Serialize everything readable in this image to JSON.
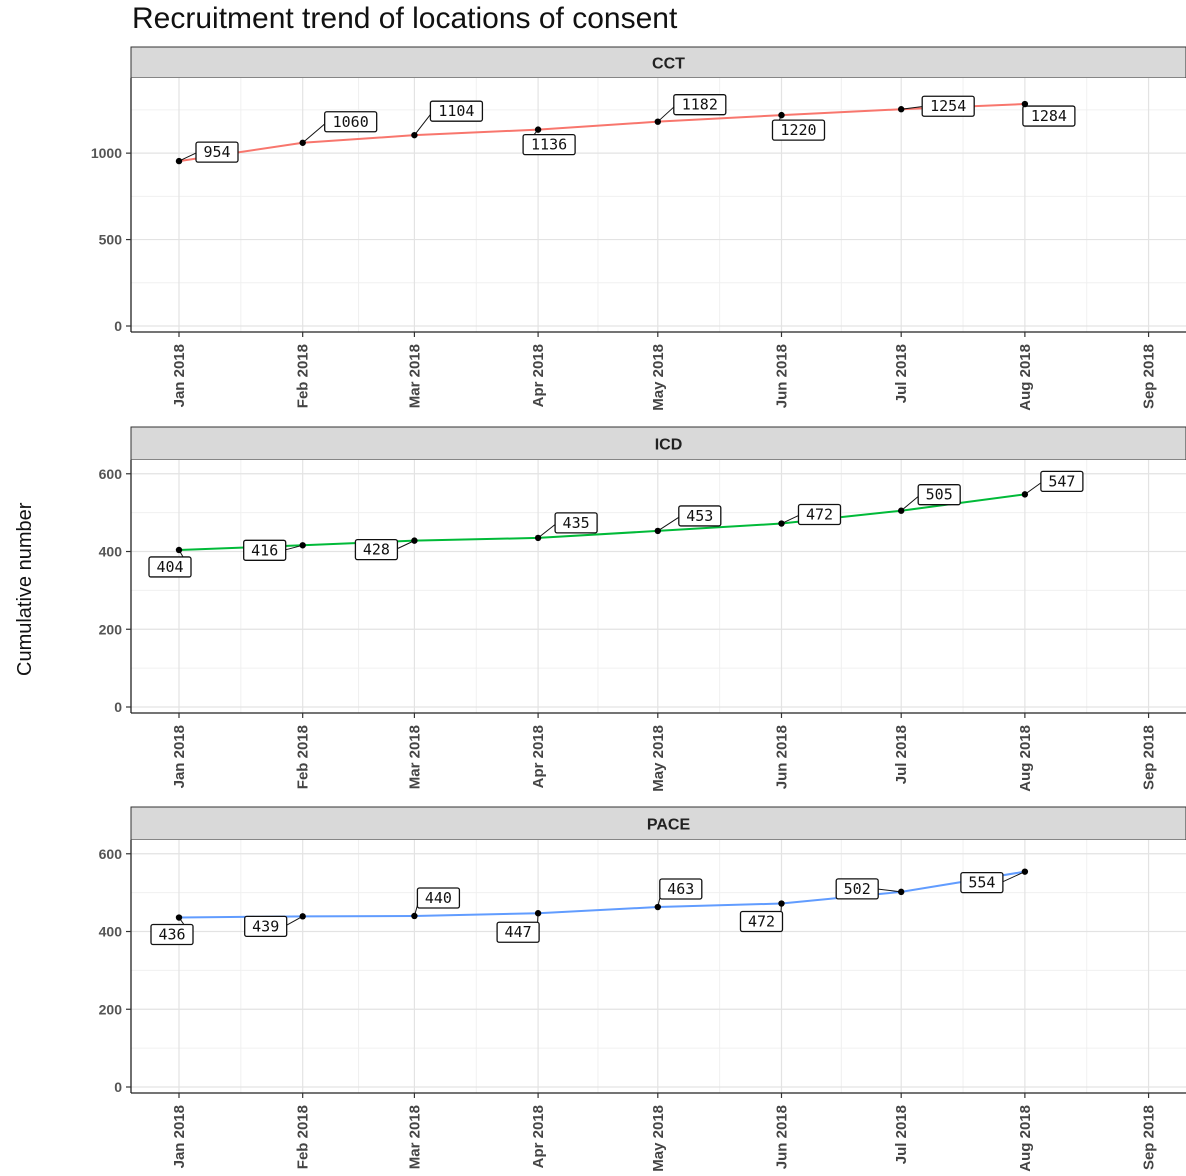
{
  "chart_data": {
    "type": "line",
    "title": "Recruitment trend of locations of consent",
    "ylabel": "Cumulative number",
    "xlabel": "",
    "x_ticks": [
      "Jan 2018",
      "Feb 2018",
      "Mar 2018",
      "Apr 2018",
      "May 2018",
      "Jun 2018",
      "Jul 2018",
      "Aug 2018",
      "Sep 2018"
    ],
    "x": [
      "2018-01-01",
      "2018-02-01",
      "2018-03-01",
      "2018-04-01",
      "2018-05-01",
      "2018-06-01",
      "2018-07-01",
      "2018-08-01"
    ],
    "grid": true,
    "legend": "none",
    "panels": [
      {
        "strip": "CCT",
        "color": "#f8766d",
        "values": [
          954,
          1060,
          1104,
          1136,
          1182,
          1220,
          1254,
          1284
        ],
        "ylim": [
          0,
          1400
        ],
        "yticks": [
          0,
          500,
          1000
        ]
      },
      {
        "strip": "ICD",
        "color": "#00ba38",
        "values": [
          404,
          416,
          428,
          435,
          453,
          472,
          505,
          547
        ],
        "ylim": [
          0,
          620
        ],
        "yticks": [
          0,
          200,
          400,
          600
        ]
      },
      {
        "strip": "PACE",
        "color": "#619cff",
        "values": [
          436,
          439,
          440,
          447,
          463,
          472,
          502,
          554
        ],
        "ylim": [
          0,
          620
        ],
        "yticks": [
          0,
          200,
          400,
          600
        ]
      }
    ]
  }
}
